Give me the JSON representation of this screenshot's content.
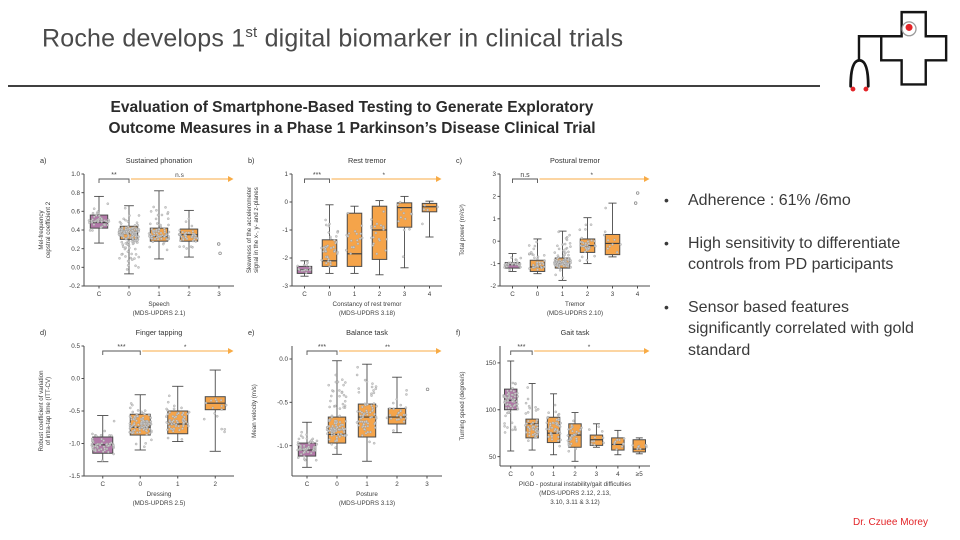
{
  "slide": {
    "title_pre": "Roche develops 1",
    "title_sup": "st",
    "title_post": " digital biomarker in clinical trials",
    "author": "Dr. Czuee Morey"
  },
  "figure": {
    "title_line1": "Evaluation of Smartphone-Based Testing to Generate Exploratory",
    "title_line2": "Outcome Measures in a Phase 1 Parkinson’s Disease Clinical Trial",
    "colors": {
      "box_control": "#b278a8",
      "box_pd": "#f5a44a",
      "arrow": "#f8ab45",
      "axis": "#4c4c4c",
      "points": "#cfcfcf",
      "accent_red": "#e32428",
      "title_gray": "#4a4a4a"
    }
  },
  "bullets": [
    "Adherence : 61% /6mo",
    "High sensitivity to differentiate controls from PD participants",
    "Sensor based features significantly correlated with gold standard"
  ],
  "chart_data": [
    {
      "type": "box",
      "letter": "a)",
      "title": "Sustained phonation",
      "ylabel": [
        "Mel-frequency",
        "cepstral coefficient 2"
      ],
      "ylim": [
        -0.2,
        1.0
      ],
      "yticks": [
        "1.0",
        "0.8",
        "0.6",
        "0.4",
        "0.2",
        "0.0",
        "-0.2"
      ],
      "categories": [
        "C",
        "0",
        "1",
        "2",
        "3"
      ],
      "xlabel": [
        "Speech",
        "(MDS-UPDRS 2.1)"
      ],
      "boxes": [
        {
          "cat": "C",
          "group": "control",
          "low": 0.26,
          "q1": 0.42,
          "median": 0.48,
          "q3": 0.56,
          "high": 0.76,
          "n": 45
        },
        {
          "cat": "0",
          "group": "pd",
          "low": -0.07,
          "q1": 0.3,
          "median": 0.36,
          "q3": 0.44,
          "high": 0.66,
          "n": 150
        },
        {
          "cat": "1",
          "group": "pd",
          "low": 0.09,
          "q1": 0.28,
          "median": 0.33,
          "q3": 0.42,
          "high": 0.82,
          "n": 70
        },
        {
          "cat": "2",
          "group": "pd",
          "low": 0.11,
          "q1": 0.28,
          "median": 0.35,
          "q3": 0.41,
          "high": 0.61,
          "n": 45
        },
        {
          "cat": "3",
          "group": "pd",
          "outliers": [
            0.25,
            0.15
          ],
          "n": 0
        }
      ],
      "sig_bracket": {
        "label": "**",
        "from": 0,
        "to": 1
      },
      "sig_arrow": {
        "label": "n.s",
        "from": 1
      }
    },
    {
      "type": "box",
      "letter": "b)",
      "title": "Rest tremor",
      "ylabel": [
        "Skewness of the accelerometer",
        "signal in the x-, y- and z-planes"
      ],
      "ylim": [
        -3,
        1
      ],
      "yticks": [
        "1",
        "0",
        "-1",
        "-2",
        "-3"
      ],
      "categories": [
        "C",
        "0",
        "1",
        "2",
        "3",
        "4"
      ],
      "xlabel": [
        "Constancy of rest tremor",
        "(MDS-UPDRS 3.18)"
      ],
      "boxes": [
        {
          "cat": "C",
          "group": "control",
          "low": -2.65,
          "q1": -2.55,
          "median": -2.42,
          "q3": -2.3,
          "high": -2.1,
          "n": 14
        },
        {
          "cat": "0",
          "group": "pd",
          "low": -2.55,
          "q1": -2.3,
          "median": -2.1,
          "q3": -1.35,
          "high": -0.1,
          "n": 40
        },
        {
          "cat": "1",
          "group": "pd",
          "low": -2.55,
          "q1": -2.3,
          "median": -1.85,
          "q3": -0.4,
          "high": -0.15,
          "n": 18
        },
        {
          "cat": "2",
          "group": "pd",
          "low": -2.6,
          "q1": -2.05,
          "median": -1.0,
          "q3": -0.15,
          "high": 0.05,
          "n": 20
        },
        {
          "cat": "3",
          "group": "pd",
          "low": -2.35,
          "q1": -0.9,
          "median": -0.2,
          "q3": -0.03,
          "high": 0.2,
          "n": 12
        },
        {
          "cat": "4",
          "group": "pd",
          "low": -1.25,
          "q1": -0.35,
          "median": -0.17,
          "q3": -0.05,
          "high": 0.03,
          "n": 5
        }
      ],
      "sig_bracket": {
        "label": "***",
        "from": 0,
        "to": 1
      },
      "sig_arrow": {
        "label": "*",
        "from": 1
      }
    },
    {
      "type": "box",
      "letter": "c)",
      "title": "Postural tremor",
      "ylabel": [
        "Total power (m²/s³)"
      ],
      "ylim": [
        -2,
        3
      ],
      "yticks": [
        "3",
        "2",
        "1",
        "0",
        "-1",
        "-2"
      ],
      "categories": [
        "C",
        "0",
        "1",
        "2",
        "3",
        "4"
      ],
      "xlabel": [
        "Tremor",
        "(MDS-UPDRS 2.10)"
      ],
      "boxes": [
        {
          "cat": "C",
          "group": "control",
          "low": -1.35,
          "q1": -1.2,
          "median": -1.05,
          "q3": -0.95,
          "high": -0.55,
          "n": 30
        },
        {
          "cat": "0",
          "group": "pd",
          "low": -1.45,
          "q1": -1.35,
          "median": -1.15,
          "q3": -0.85,
          "high": 0.1,
          "n": 35
        },
        {
          "cat": "1",
          "group": "pd",
          "low": -1.75,
          "q1": -1.2,
          "median": -1.0,
          "q3": -0.75,
          "high": 0.45,
          "n": 90
        },
        {
          "cat": "2",
          "group": "pd",
          "low": -1.0,
          "q1": -0.5,
          "median": -0.2,
          "q3": 0.1,
          "high": 1.05,
          "n": 35
        },
        {
          "cat": "3",
          "group": "pd",
          "low": -0.7,
          "q1": -0.6,
          "median": -0.1,
          "q3": 0.3,
          "high": 1.7,
          "n": 10
        },
        {
          "cat": "4",
          "group": "pd",
          "outliers": [
            2.15,
            1.7
          ],
          "n": 0
        }
      ],
      "sig_bracket": {
        "label": "n.s",
        "from": 0,
        "to": 1
      },
      "sig_arrow": {
        "label": "*",
        "from": 1
      }
    },
    {
      "type": "box",
      "letter": "d)",
      "title": "Finger tapping",
      "ylabel": [
        "Robust coefficient of variation",
        "of intra-tap time (ITT-CV)"
      ],
      "ylim": [
        -1.5,
        0.5
      ],
      "yticks": [
        "0.5",
        "0.0",
        "-0.5",
        "-1.0",
        "-1.5"
      ],
      "categories": [
        "C",
        "0",
        "1",
        "2"
      ],
      "xlabel": [
        "Dressing",
        "(MDS-UPDRS 2.5)"
      ],
      "boxes": [
        {
          "cat": "C",
          "group": "control",
          "low": -1.28,
          "q1": -1.15,
          "median": -1.02,
          "q3": -0.9,
          "high": -0.57,
          "n": 55
        },
        {
          "cat": "0",
          "group": "pd",
          "low": -1.1,
          "q1": -0.87,
          "median": -0.75,
          "q3": -0.55,
          "high": -0.25,
          "n": 95
        },
        {
          "cat": "1",
          "group": "pd",
          "low": -0.97,
          "q1": -0.85,
          "median": -0.7,
          "q3": -0.5,
          "high": -0.12,
          "n": 60
        },
        {
          "cat": "2",
          "group": "pd",
          "low": -1.12,
          "q1": -0.48,
          "median": -0.38,
          "q3": -0.28,
          "high": 0.13,
          "n": 15
        }
      ],
      "sig_bracket": {
        "label": "***",
        "from": 0,
        "to": 1
      },
      "sig_arrow": {
        "label": "*",
        "from": 1
      }
    },
    {
      "type": "box",
      "letter": "e)",
      "title": "Balance task",
      "ylabel": [
        "Mean velocity (m/s)"
      ],
      "ylim": [
        -1.35,
        0.15
      ],
      "yticks": [
        "0.0",
        "-0.5",
        "-1.0"
      ],
      "categories": [
        "C",
        "0",
        "1",
        "2",
        "3"
      ],
      "xlabel": [
        "Posture",
        "(MDS-UPDRS 3.13)"
      ],
      "boxes": [
        {
          "cat": "C",
          "group": "control",
          "low": -1.25,
          "q1": -1.12,
          "median": -1.05,
          "q3": -0.97,
          "high": -0.73,
          "n": 60
        },
        {
          "cat": "0",
          "group": "pd",
          "low": -1.1,
          "q1": -0.97,
          "median": -0.87,
          "q3": -0.67,
          "high": -0.02,
          "n": 95
        },
        {
          "cat": "1",
          "group": "pd",
          "low": -1.18,
          "q1": -0.9,
          "median": -0.67,
          "q3": -0.52,
          "high": -0.06,
          "n": 70
        },
        {
          "cat": "2",
          "group": "pd",
          "low": -0.85,
          "q1": -0.75,
          "median": -0.67,
          "q3": -0.57,
          "high": -0.21,
          "n": 25
        },
        {
          "cat": "3",
          "group": "pd",
          "outliers": [
            -0.35
          ],
          "n": 0
        }
      ],
      "sig_bracket": {
        "label": "***",
        "from": 0,
        "to": 1
      },
      "sig_arrow": {
        "label": "**",
        "from": 1
      }
    },
    {
      "type": "box",
      "letter": "f)",
      "title": "Gait task",
      "ylabel": [
        "Turning speed (degree/s)"
      ],
      "ylim": [
        40,
        168
      ],
      "yticks": [
        "150",
        "100",
        "50"
      ],
      "categories": [
        "C",
        "0",
        "1",
        "2",
        "3",
        "4",
        "≥5"
      ],
      "xlabel": [
        "PIGD - postural instability/gait difficulties",
        "(MDS-UPDRS 2.12, 2.13,",
        "3.10, 3.11 & 3.12)"
      ],
      "boxes": [
        {
          "cat": "C",
          "group": "control",
          "low": 56,
          "q1": 100,
          "median": 110,
          "q3": 122,
          "high": 152,
          "n": 70
        },
        {
          "cat": "0",
          "group": "pd",
          "low": 57,
          "q1": 70,
          "median": 85,
          "q3": 90,
          "high": 128,
          "n": 45
        },
        {
          "cat": "1",
          "group": "pd",
          "low": 52,
          "q1": 65,
          "median": 75,
          "q3": 92,
          "high": 117,
          "n": 45
        },
        {
          "cat": "2",
          "group": "pd",
          "low": 45,
          "q1": 60,
          "median": 73,
          "q3": 85,
          "high": 97,
          "n": 35
        },
        {
          "cat": "3",
          "group": "pd",
          "low": 60,
          "q1": 62,
          "median": 68,
          "q3": 73,
          "high": 85,
          "n": 10
        },
        {
          "cat": "4",
          "group": "pd",
          "low": 52,
          "q1": 57,
          "median": 63,
          "q3": 70,
          "high": 78,
          "n": 10
        },
        {
          "cat": "≥5",
          "group": "pd",
          "low": 53,
          "q1": 55,
          "median": 58,
          "q3": 68,
          "high": 70,
          "n": 8
        }
      ],
      "sig_bracket": {
        "label": "***",
        "from": 0,
        "to": 1
      },
      "sig_arrow": {
        "label": "*",
        "from": 1
      }
    }
  ]
}
